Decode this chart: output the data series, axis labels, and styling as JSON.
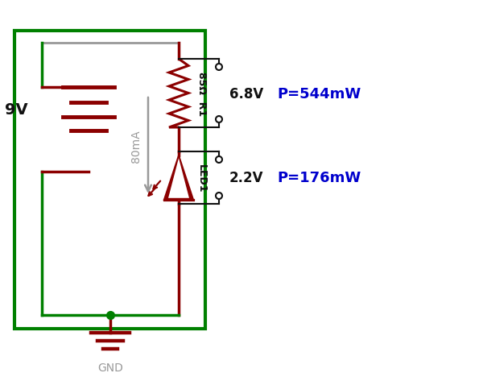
{
  "bg_color": "#ffffff",
  "dark_red": "#8B0000",
  "gray": "#999999",
  "green": "#008000",
  "blue": "#0000CD",
  "black": "#111111",
  "battery_label": "9V",
  "resistor_label": "85Ω  R1",
  "current_label": "80mA",
  "led_label": "LED1",
  "gnd_label": "GND",
  "v_resistor": "6.8V",
  "p_resistor": "P=544mW",
  "v_led": "2.2V",
  "p_led": "P=176mW",
  "fig_w": 6.0,
  "fig_h": 4.64,
  "dpi": 100,
  "xlim": [
    0,
    6.0
  ],
  "ylim": [
    0,
    4.64
  ],
  "border_lw": 3.0,
  "wire_lw": 2.5,
  "bat_lw": 3.5,
  "res_lw": 2.2,
  "probe_r": 0.04,
  "probe_lw": 1.5
}
